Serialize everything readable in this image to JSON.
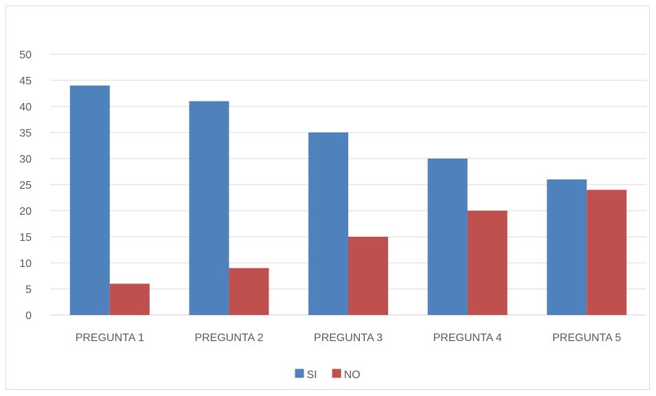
{
  "chart_data": {
    "type": "bar",
    "categories": [
      "PREGUNTA 1",
      "PREGUNTA 2",
      "PREGUNTA 3",
      "PREGUNTA 4",
      "PREGUNTA 5"
    ],
    "series": [
      {
        "name": "SI",
        "values": [
          44,
          41,
          35,
          30,
          26
        ],
        "color": "#4f81bd"
      },
      {
        "name": "NO",
        "values": [
          6,
          9,
          15,
          20,
          24
        ],
        "color": "#c0504d"
      }
    ],
    "y_ticks": [
      0,
      5,
      10,
      15,
      20,
      25,
      30,
      35,
      40,
      45,
      50
    ],
    "ylim": [
      0,
      50
    ],
    "grid": true,
    "legend_position": "bottom",
    "title": "",
    "xlabel": "",
    "ylabel": ""
  }
}
